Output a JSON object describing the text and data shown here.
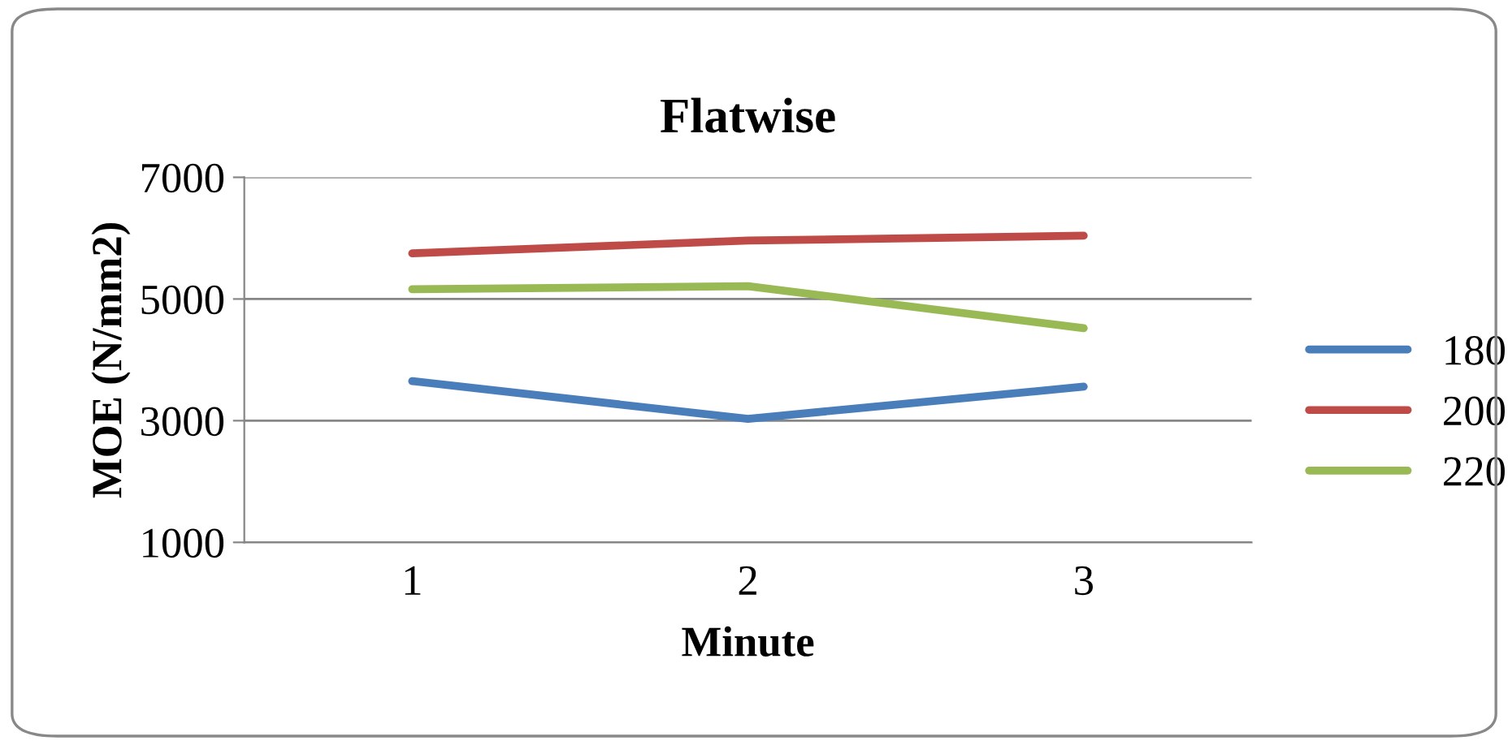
{
  "chart_data": {
    "type": "line",
    "title": "Flatwise",
    "xlabel": "Minute",
    "ylabel": "MOE (N/mm2)",
    "categories": [
      "1",
      "2",
      "3"
    ],
    "series": [
      {
        "name": "180",
        "color": "#4a7ebb",
        "values": [
          3650,
          3030,
          3560
        ]
      },
      {
        "name": "200",
        "color": "#be4b48",
        "values": [
          5750,
          5960,
          6040
        ]
      },
      {
        "name": "220",
        "color": "#98b954",
        "values": [
          5160,
          5210,
          4520
        ]
      }
    ],
    "ylim": [
      1000,
      7000
    ],
    "yticks": [
      1000,
      3000,
      5000,
      7000
    ],
    "grid": "y",
    "legend": "right",
    "marker": "none",
    "line_style": "solid"
  }
}
